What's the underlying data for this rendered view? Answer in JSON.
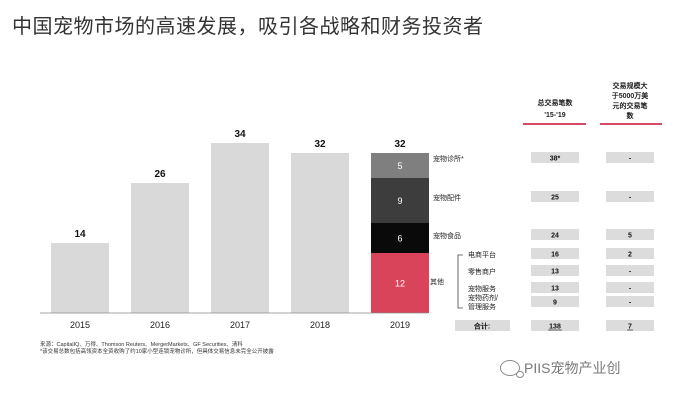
{
  "title": "中国宠物市场的高速发展，吸引各战略和财务投资者",
  "chart_data": {
    "type": "bar",
    "categories": [
      "2015",
      "2016",
      "2017",
      "2018",
      "2019"
    ],
    "values": [
      14,
      26,
      34,
      32,
      32
    ],
    "stacked_2019": [
      {
        "name": "宠物诊所*",
        "value": 5,
        "color": "#7f7f7f"
      },
      {
        "name": "宠物配件",
        "value": 9,
        "color": "#3d3d3d"
      },
      {
        "name": "宠物食品",
        "value": 6,
        "color": "#0a0a0a"
      },
      {
        "name": "其他",
        "value": 12,
        "color": "#d9445b"
      }
    ],
    "bar_color": "#d9d9d9",
    "ylim": [
      0,
      40
    ]
  },
  "table": {
    "col1_header": "总交易笔数 '15-'19",
    "col2_header": "交易规模大于5000万美元的交易笔数",
    "rows": [
      {
        "label": "宠物诊所*",
        "v1": "38*",
        "v2": "-"
      },
      {
        "label": "宠物配件",
        "v1": "25",
        "v2": "-"
      },
      {
        "label": "宠物食品",
        "v1": "24",
        "v2": "5"
      }
    ],
    "other_label": "其他",
    "sub_rows": [
      {
        "label": "电商平台",
        "v1": "16",
        "v2": "2"
      },
      {
        "label": "零售商户",
        "v1": "13",
        "v2": "-"
      },
      {
        "label": "宠物服务",
        "v1": "13",
        "v2": "-"
      },
      {
        "label": "宠物药剂/管理服务",
        "v1": "9",
        "v2": "-"
      }
    ],
    "total_label": "合计:",
    "total_v1": "138",
    "total_v2": "7",
    "accent_color": "#c8102e"
  },
  "source_lines": [
    "来源：CapitalIQ、万得、Thomson Reuters、MergerMarkets、GF Securities、清科",
    "*该交易总数包括高瓴资本全资收购了约10家小型连锁宠物诊所，但具体交易信息未完全公开披露"
  ],
  "watermark": "PIIS宠物产业创"
}
